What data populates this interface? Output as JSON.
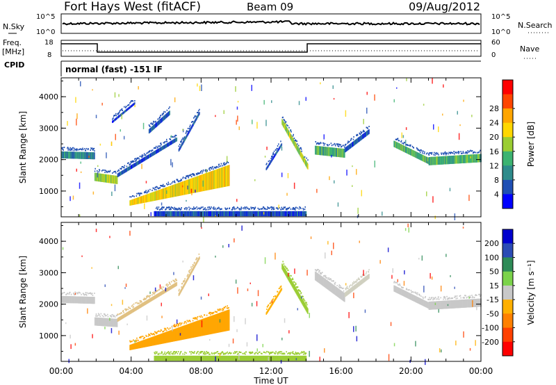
{
  "header": {
    "station": "Fort Hays West (fitACF)",
    "beam": "Beam 09",
    "date": "09/Aug/2012"
  },
  "mode": "normal (fast) -151 IF",
  "labels": {
    "nsky": "N.Sky",
    "nsearch": "N.Search",
    "freq_top": "Freq.",
    "freq_unit": "[MHz]",
    "cpid": "CPID",
    "nave": "Nave",
    "tick_1e5_left": "10^5",
    "tick_1e0_left": "10^0",
    "tick_1e5_right": "10^5",
    "tick_1e0_right": "10^0",
    "freq_ticks": [
      "18",
      "8"
    ],
    "nave_ticks": [
      "60",
      "0"
    ]
  },
  "chart_data": [
    {
      "type": "heatmap",
      "name": "power",
      "ylabel": "Slant Range [km]",
      "xlabel": "",
      "x_ticks": [
        "00:00",
        "04:00",
        "08:00",
        "12:00",
        "16:00",
        "20:00",
        "00:00"
      ],
      "xlim_hours": [
        0,
        24
      ],
      "y_ticks": [
        1000,
        2000,
        3000,
        4000
      ],
      "ylim": [
        180,
        4600
      ],
      "colorbar": {
        "label": "Power [dB]",
        "ticks": [
          "4",
          "8",
          "12",
          "16",
          "20",
          "24",
          "28"
        ],
        "colors": [
          "#0000ff",
          "#1f4fb4",
          "#2e8b8b",
          "#3cb371",
          "#9acd32",
          "#ffd700",
          "#ffa500",
          "#ff4500",
          "#ff0000"
        ]
      },
      "features": [
        {
          "kind": "band",
          "t0": 0.0,
          "t1": 1.9,
          "r0": 2150,
          "r1": 2120,
          "width": 220,
          "level": 2
        },
        {
          "kind": "band",
          "t0": 1.9,
          "t1": 3.2,
          "r0": 1450,
          "r1": 1350,
          "width": 260,
          "level": 4
        },
        {
          "kind": "band",
          "t0": 3.2,
          "t1": 6.6,
          "r0": 1500,
          "r1": 2650,
          "width": 120,
          "level": 1
        },
        {
          "kind": "band",
          "t0": 6.7,
          "t1": 7.9,
          "r0": 2300,
          "r1": 3500,
          "width": 90,
          "level": 1
        },
        {
          "kind": "band",
          "t0": 5.0,
          "t1": 6.2,
          "r0": 2900,
          "r1": 3500,
          "width": 140,
          "level": 1
        },
        {
          "kind": "band",
          "t0": 2.9,
          "t1": 4.2,
          "r0": 3200,
          "r1": 3800,
          "width": 70,
          "level": 1
        },
        {
          "kind": "blob",
          "t0": 3.9,
          "t1": 9.6,
          "r0": 620,
          "r1": 1500,
          "width": 420,
          "level": 5
        },
        {
          "kind": "band",
          "t0": 11.7,
          "t1": 12.6,
          "r0": 1700,
          "r1": 2500,
          "width": 80,
          "level": 1
        },
        {
          "kind": "band",
          "t0": 12.6,
          "t1": 14.1,
          "r0": 3200,
          "r1": 1750,
          "width": 180,
          "level": 4
        },
        {
          "kind": "band",
          "t0": 14.5,
          "t1": 16.2,
          "r0": 2300,
          "r1": 2200,
          "width": 280,
          "level": 3
        },
        {
          "kind": "band",
          "t0": 16.2,
          "t1": 17.6,
          "r0": 2300,
          "r1": 2900,
          "width": 150,
          "level": 1
        },
        {
          "kind": "band",
          "t0": 19.0,
          "t1": 21.0,
          "r0": 2500,
          "r1": 1950,
          "width": 200,
          "level": 3
        },
        {
          "kind": "band",
          "t0": 21.0,
          "t1": 24.0,
          "r0": 1950,
          "r1": 2050,
          "width": 260,
          "level": 3
        },
        {
          "kind": "band",
          "t0": 5.3,
          "t1": 14.0,
          "r0": 280,
          "r1": 280,
          "width": 160,
          "level": 1
        }
      ]
    },
    {
      "type": "heatmap",
      "name": "velocity",
      "ylabel": "Slant Range [km]",
      "xlabel": "Time UT",
      "x_ticks": [
        "00:00",
        "04:00",
        "08:00",
        "12:00",
        "16:00",
        "20:00",
        "00:00"
      ],
      "xlim_hours": [
        0,
        24
      ],
      "y_ticks": [
        1000,
        2000,
        3000,
        4000
      ],
      "ylim": [
        180,
        4600
      ],
      "colorbar": {
        "label": "Velocity [m s⁻¹]",
        "ticks": [
          "200",
          "100",
          "50",
          "15",
          "-15",
          "-50",
          "-100",
          "-200"
        ],
        "colors": [
          "#0000cd",
          "#2b4bb5",
          "#2e8b57",
          "#7bd34a",
          "#c8c8c8",
          "#ffb000",
          "#ff8000",
          "#ff4000",
          "#ff0000"
        ]
      },
      "features": [
        {
          "kind": "band",
          "t0": 0.0,
          "t1": 1.9,
          "r0": 2150,
          "r1": 2120,
          "width": 220,
          "color": "#c8c8c8"
        },
        {
          "kind": "band",
          "t0": 1.9,
          "t1": 3.2,
          "r0": 1450,
          "r1": 1400,
          "width": 260,
          "color": "#c8c8c8"
        },
        {
          "kind": "band",
          "t0": 3.2,
          "t1": 6.6,
          "r0": 1500,
          "r1": 2650,
          "width": 120,
          "color": "#e0c080"
        },
        {
          "kind": "band",
          "t0": 6.7,
          "t1": 7.9,
          "r0": 2300,
          "r1": 3500,
          "width": 90,
          "color": "#e0c080"
        },
        {
          "kind": "blob",
          "t0": 3.9,
          "t1": 9.6,
          "r0": 620,
          "r1": 1500,
          "width": 420,
          "color": "#ffa500"
        },
        {
          "kind": "band",
          "t0": 11.7,
          "t1": 12.6,
          "r0": 1700,
          "r1": 2500,
          "width": 80,
          "color": "#ffb000"
        },
        {
          "kind": "band",
          "t0": 12.6,
          "t1": 14.1,
          "r0": 3200,
          "r1": 1750,
          "width": 180,
          "color": "#9acd32"
        },
        {
          "kind": "band",
          "t0": 14.5,
          "t1": 16.2,
          "r0": 2900,
          "r1": 2200,
          "width": 280,
          "color": "#c8c8c8"
        },
        {
          "kind": "band",
          "t0": 16.2,
          "t1": 17.6,
          "r0": 2300,
          "r1": 2900,
          "width": 150,
          "color": "#d0d0c0"
        },
        {
          "kind": "band",
          "t0": 19.0,
          "t1": 21.0,
          "r0": 2500,
          "r1": 1950,
          "width": 200,
          "color": "#c8c8c8"
        },
        {
          "kind": "band",
          "t0": 21.0,
          "t1": 24.0,
          "r0": 1950,
          "r1": 2050,
          "width": 260,
          "color": "#c8c8c8"
        },
        {
          "kind": "band",
          "t0": 5.3,
          "t1": 14.0,
          "r0": 280,
          "r1": 280,
          "width": 160,
          "color": "#9acd32"
        }
      ]
    }
  ]
}
